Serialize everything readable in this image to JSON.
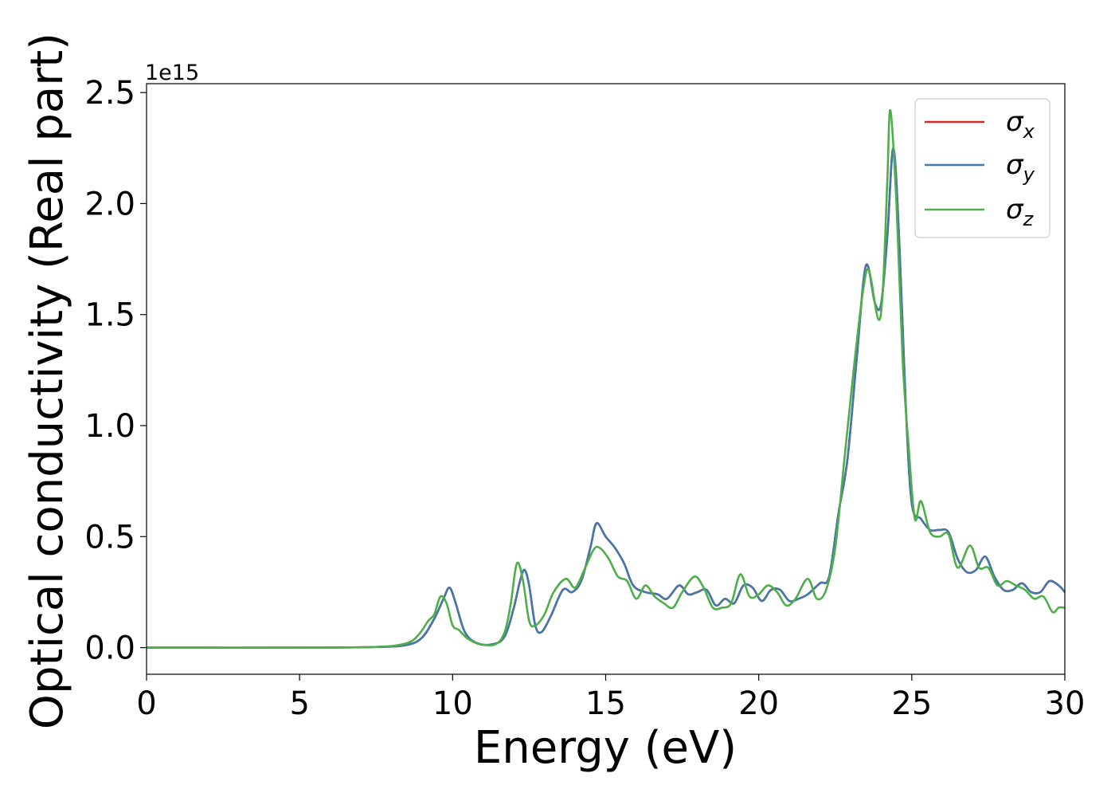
{
  "chart_data": {
    "type": "line",
    "xlabel": "Energy (eV)",
    "ylabel": "Optical conductivity (Real part)",
    "y_offset_label": "1e15",
    "xlim": [
      0,
      30
    ],
    "ylim": [
      -0.12,
      2.54
    ],
    "xticks": [
      0,
      5,
      10,
      15,
      20,
      25,
      30
    ],
    "yticks": [
      0.0,
      0.5,
      1.0,
      1.5,
      2.0,
      2.5
    ],
    "ytick_labels": [
      "0.0",
      "0.5",
      "1.0",
      "1.5",
      "2.0",
      "2.5"
    ],
    "grid": false,
    "legend": {
      "position": "top-right"
    },
    "series": [
      {
        "name": "σ_x",
        "base": "σ",
        "sub": "x",
        "color": "#d62728",
        "points": [
          [
            0,
            0
          ],
          [
            5,
            0
          ],
          [
            7.5,
            0.003
          ],
          [
            8.5,
            0.012
          ],
          [
            9.0,
            0.045
          ],
          [
            9.4,
            0.13
          ],
          [
            9.7,
            0.22
          ],
          [
            9.9,
            0.27
          ],
          [
            10.1,
            0.2
          ],
          [
            10.4,
            0.07
          ],
          [
            10.8,
            0.02
          ],
          [
            11.3,
            0.015
          ],
          [
            11.7,
            0.05
          ],
          [
            12.0,
            0.18
          ],
          [
            12.2,
            0.3
          ],
          [
            12.35,
            0.35
          ],
          [
            12.5,
            0.28
          ],
          [
            12.7,
            0.1
          ],
          [
            12.9,
            0.07
          ],
          [
            13.2,
            0.14
          ],
          [
            13.6,
            0.26
          ],
          [
            13.9,
            0.25
          ],
          [
            14.2,
            0.3
          ],
          [
            14.5,
            0.45
          ],
          [
            14.7,
            0.56
          ],
          [
            15.0,
            0.5
          ],
          [
            15.3,
            0.45
          ],
          [
            15.6,
            0.38
          ],
          [
            15.9,
            0.28
          ],
          [
            16.3,
            0.25
          ],
          [
            16.7,
            0.24
          ],
          [
            17.0,
            0.22
          ],
          [
            17.4,
            0.28
          ],
          [
            17.7,
            0.24
          ],
          [
            18.0,
            0.25
          ],
          [
            18.3,
            0.26
          ],
          [
            18.6,
            0.19
          ],
          [
            18.9,
            0.22
          ],
          [
            19.2,
            0.2
          ],
          [
            19.5,
            0.28
          ],
          [
            19.8,
            0.27
          ],
          [
            20.1,
            0.21
          ],
          [
            20.4,
            0.26
          ],
          [
            20.7,
            0.26
          ],
          [
            21.0,
            0.21
          ],
          [
            21.3,
            0.22
          ],
          [
            21.6,
            0.24
          ],
          [
            22.0,
            0.29
          ],
          [
            22.3,
            0.32
          ],
          [
            22.6,
            0.6
          ],
          [
            22.9,
            0.85
          ],
          [
            23.2,
            1.3
          ],
          [
            23.5,
            1.72
          ],
          [
            23.8,
            1.55
          ],
          [
            24.0,
            1.55
          ],
          [
            24.2,
            1.85
          ],
          [
            24.4,
            2.25
          ],
          [
            24.6,
            1.8
          ],
          [
            24.8,
            1.1
          ],
          [
            25.0,
            0.65
          ],
          [
            25.3,
            0.58
          ],
          [
            25.6,
            0.53
          ],
          [
            25.9,
            0.53
          ],
          [
            26.2,
            0.52
          ],
          [
            26.5,
            0.4
          ],
          [
            26.8,
            0.34
          ],
          [
            27.1,
            0.35
          ],
          [
            27.4,
            0.41
          ],
          [
            27.7,
            0.32
          ],
          [
            28.0,
            0.26
          ],
          [
            28.3,
            0.26
          ],
          [
            28.6,
            0.29
          ],
          [
            28.9,
            0.25
          ],
          [
            29.2,
            0.25
          ],
          [
            29.5,
            0.3
          ],
          [
            29.8,
            0.28
          ],
          [
            30.0,
            0.25
          ]
        ]
      },
      {
        "name": "σ_y",
        "base": "σ",
        "sub": "y",
        "color": "#4477aa",
        "points": [
          [
            0,
            0
          ],
          [
            5,
            0
          ],
          [
            7.5,
            0.003
          ],
          [
            8.5,
            0.012
          ],
          [
            9.0,
            0.045
          ],
          [
            9.4,
            0.13
          ],
          [
            9.7,
            0.22
          ],
          [
            9.9,
            0.27
          ],
          [
            10.1,
            0.2
          ],
          [
            10.4,
            0.07
          ],
          [
            10.8,
            0.02
          ],
          [
            11.3,
            0.015
          ],
          [
            11.7,
            0.05
          ],
          [
            12.0,
            0.18
          ],
          [
            12.2,
            0.3
          ],
          [
            12.35,
            0.35
          ],
          [
            12.5,
            0.28
          ],
          [
            12.7,
            0.1
          ],
          [
            12.9,
            0.07
          ],
          [
            13.2,
            0.14
          ],
          [
            13.6,
            0.26
          ],
          [
            13.9,
            0.25
          ],
          [
            14.2,
            0.3
          ],
          [
            14.5,
            0.45
          ],
          [
            14.7,
            0.56
          ],
          [
            15.0,
            0.5
          ],
          [
            15.3,
            0.45
          ],
          [
            15.6,
            0.38
          ],
          [
            15.9,
            0.28
          ],
          [
            16.3,
            0.25
          ],
          [
            16.7,
            0.24
          ],
          [
            17.0,
            0.22
          ],
          [
            17.4,
            0.28
          ],
          [
            17.7,
            0.24
          ],
          [
            18.0,
            0.25
          ],
          [
            18.3,
            0.26
          ],
          [
            18.6,
            0.19
          ],
          [
            18.9,
            0.22
          ],
          [
            19.2,
            0.2
          ],
          [
            19.5,
            0.28
          ],
          [
            19.8,
            0.27
          ],
          [
            20.1,
            0.21
          ],
          [
            20.4,
            0.26
          ],
          [
            20.7,
            0.26
          ],
          [
            21.0,
            0.21
          ],
          [
            21.3,
            0.22
          ],
          [
            21.6,
            0.24
          ],
          [
            22.0,
            0.29
          ],
          [
            22.3,
            0.32
          ],
          [
            22.6,
            0.6
          ],
          [
            22.9,
            0.85
          ],
          [
            23.2,
            1.3
          ],
          [
            23.5,
            1.72
          ],
          [
            23.8,
            1.55
          ],
          [
            24.0,
            1.55
          ],
          [
            24.2,
            1.85
          ],
          [
            24.4,
            2.25
          ],
          [
            24.6,
            1.8
          ],
          [
            24.8,
            1.1
          ],
          [
            25.0,
            0.65
          ],
          [
            25.3,
            0.58
          ],
          [
            25.6,
            0.53
          ],
          [
            25.9,
            0.53
          ],
          [
            26.2,
            0.52
          ],
          [
            26.5,
            0.4
          ],
          [
            26.8,
            0.34
          ],
          [
            27.1,
            0.35
          ],
          [
            27.4,
            0.41
          ],
          [
            27.7,
            0.32
          ],
          [
            28.0,
            0.26
          ],
          [
            28.3,
            0.26
          ],
          [
            28.6,
            0.29
          ],
          [
            28.9,
            0.25
          ],
          [
            29.2,
            0.25
          ],
          [
            29.5,
            0.3
          ],
          [
            29.8,
            0.28
          ],
          [
            30.0,
            0.25
          ]
        ]
      },
      {
        "name": "σ_z",
        "base": "σ",
        "sub": "z",
        "color": "#4daf4a",
        "points": [
          [
            0,
            0
          ],
          [
            5,
            0
          ],
          [
            7.5,
            0.003
          ],
          [
            8.5,
            0.02
          ],
          [
            8.9,
            0.06
          ],
          [
            9.2,
            0.12
          ],
          [
            9.4,
            0.15
          ],
          [
            9.6,
            0.23
          ],
          [
            9.8,
            0.2
          ],
          [
            10.0,
            0.1
          ],
          [
            10.2,
            0.08
          ],
          [
            10.5,
            0.04
          ],
          [
            10.9,
            0.015
          ],
          [
            11.4,
            0.015
          ],
          [
            11.7,
            0.07
          ],
          [
            11.9,
            0.2
          ],
          [
            12.1,
            0.38
          ],
          [
            12.3,
            0.3
          ],
          [
            12.5,
            0.12
          ],
          [
            12.7,
            0.1
          ],
          [
            13.0,
            0.15
          ],
          [
            13.3,
            0.25
          ],
          [
            13.7,
            0.31
          ],
          [
            14.0,
            0.27
          ],
          [
            14.3,
            0.35
          ],
          [
            14.6,
            0.44
          ],
          [
            14.8,
            0.45
          ],
          [
            15.1,
            0.4
          ],
          [
            15.4,
            0.32
          ],
          [
            15.7,
            0.3
          ],
          [
            16.0,
            0.22
          ],
          [
            16.3,
            0.28
          ],
          [
            16.6,
            0.23
          ],
          [
            16.9,
            0.2
          ],
          [
            17.2,
            0.18
          ],
          [
            17.5,
            0.25
          ],
          [
            17.9,
            0.32
          ],
          [
            18.2,
            0.27
          ],
          [
            18.5,
            0.18
          ],
          [
            18.8,
            0.18
          ],
          [
            19.1,
            0.2
          ],
          [
            19.4,
            0.33
          ],
          [
            19.7,
            0.23
          ],
          [
            20.0,
            0.24
          ],
          [
            20.3,
            0.28
          ],
          [
            20.6,
            0.25
          ],
          [
            20.9,
            0.19
          ],
          [
            21.2,
            0.22
          ],
          [
            21.6,
            0.31
          ],
          [
            21.9,
            0.22
          ],
          [
            22.2,
            0.26
          ],
          [
            22.5,
            0.45
          ],
          [
            22.8,
            0.85
          ],
          [
            23.1,
            1.25
          ],
          [
            23.4,
            1.6
          ],
          [
            23.6,
            1.7
          ],
          [
            23.9,
            1.48
          ],
          [
            24.05,
            1.6
          ],
          [
            24.2,
            2.1
          ],
          [
            24.3,
            2.42
          ],
          [
            24.5,
            2.0
          ],
          [
            24.7,
            1.3
          ],
          [
            24.9,
            0.9
          ],
          [
            25.1,
            0.58
          ],
          [
            25.3,
            0.66
          ],
          [
            25.6,
            0.52
          ],
          [
            25.9,
            0.5
          ],
          [
            26.2,
            0.51
          ],
          [
            26.5,
            0.36
          ],
          [
            26.9,
            0.46
          ],
          [
            27.2,
            0.36
          ],
          [
            27.5,
            0.36
          ],
          [
            27.8,
            0.28
          ],
          [
            28.1,
            0.3
          ],
          [
            28.4,
            0.28
          ],
          [
            28.7,
            0.26
          ],
          [
            29.0,
            0.22
          ],
          [
            29.3,
            0.23
          ],
          [
            29.6,
            0.16
          ],
          [
            29.8,
            0.18
          ],
          [
            30.0,
            0.18
          ]
        ]
      }
    ]
  }
}
